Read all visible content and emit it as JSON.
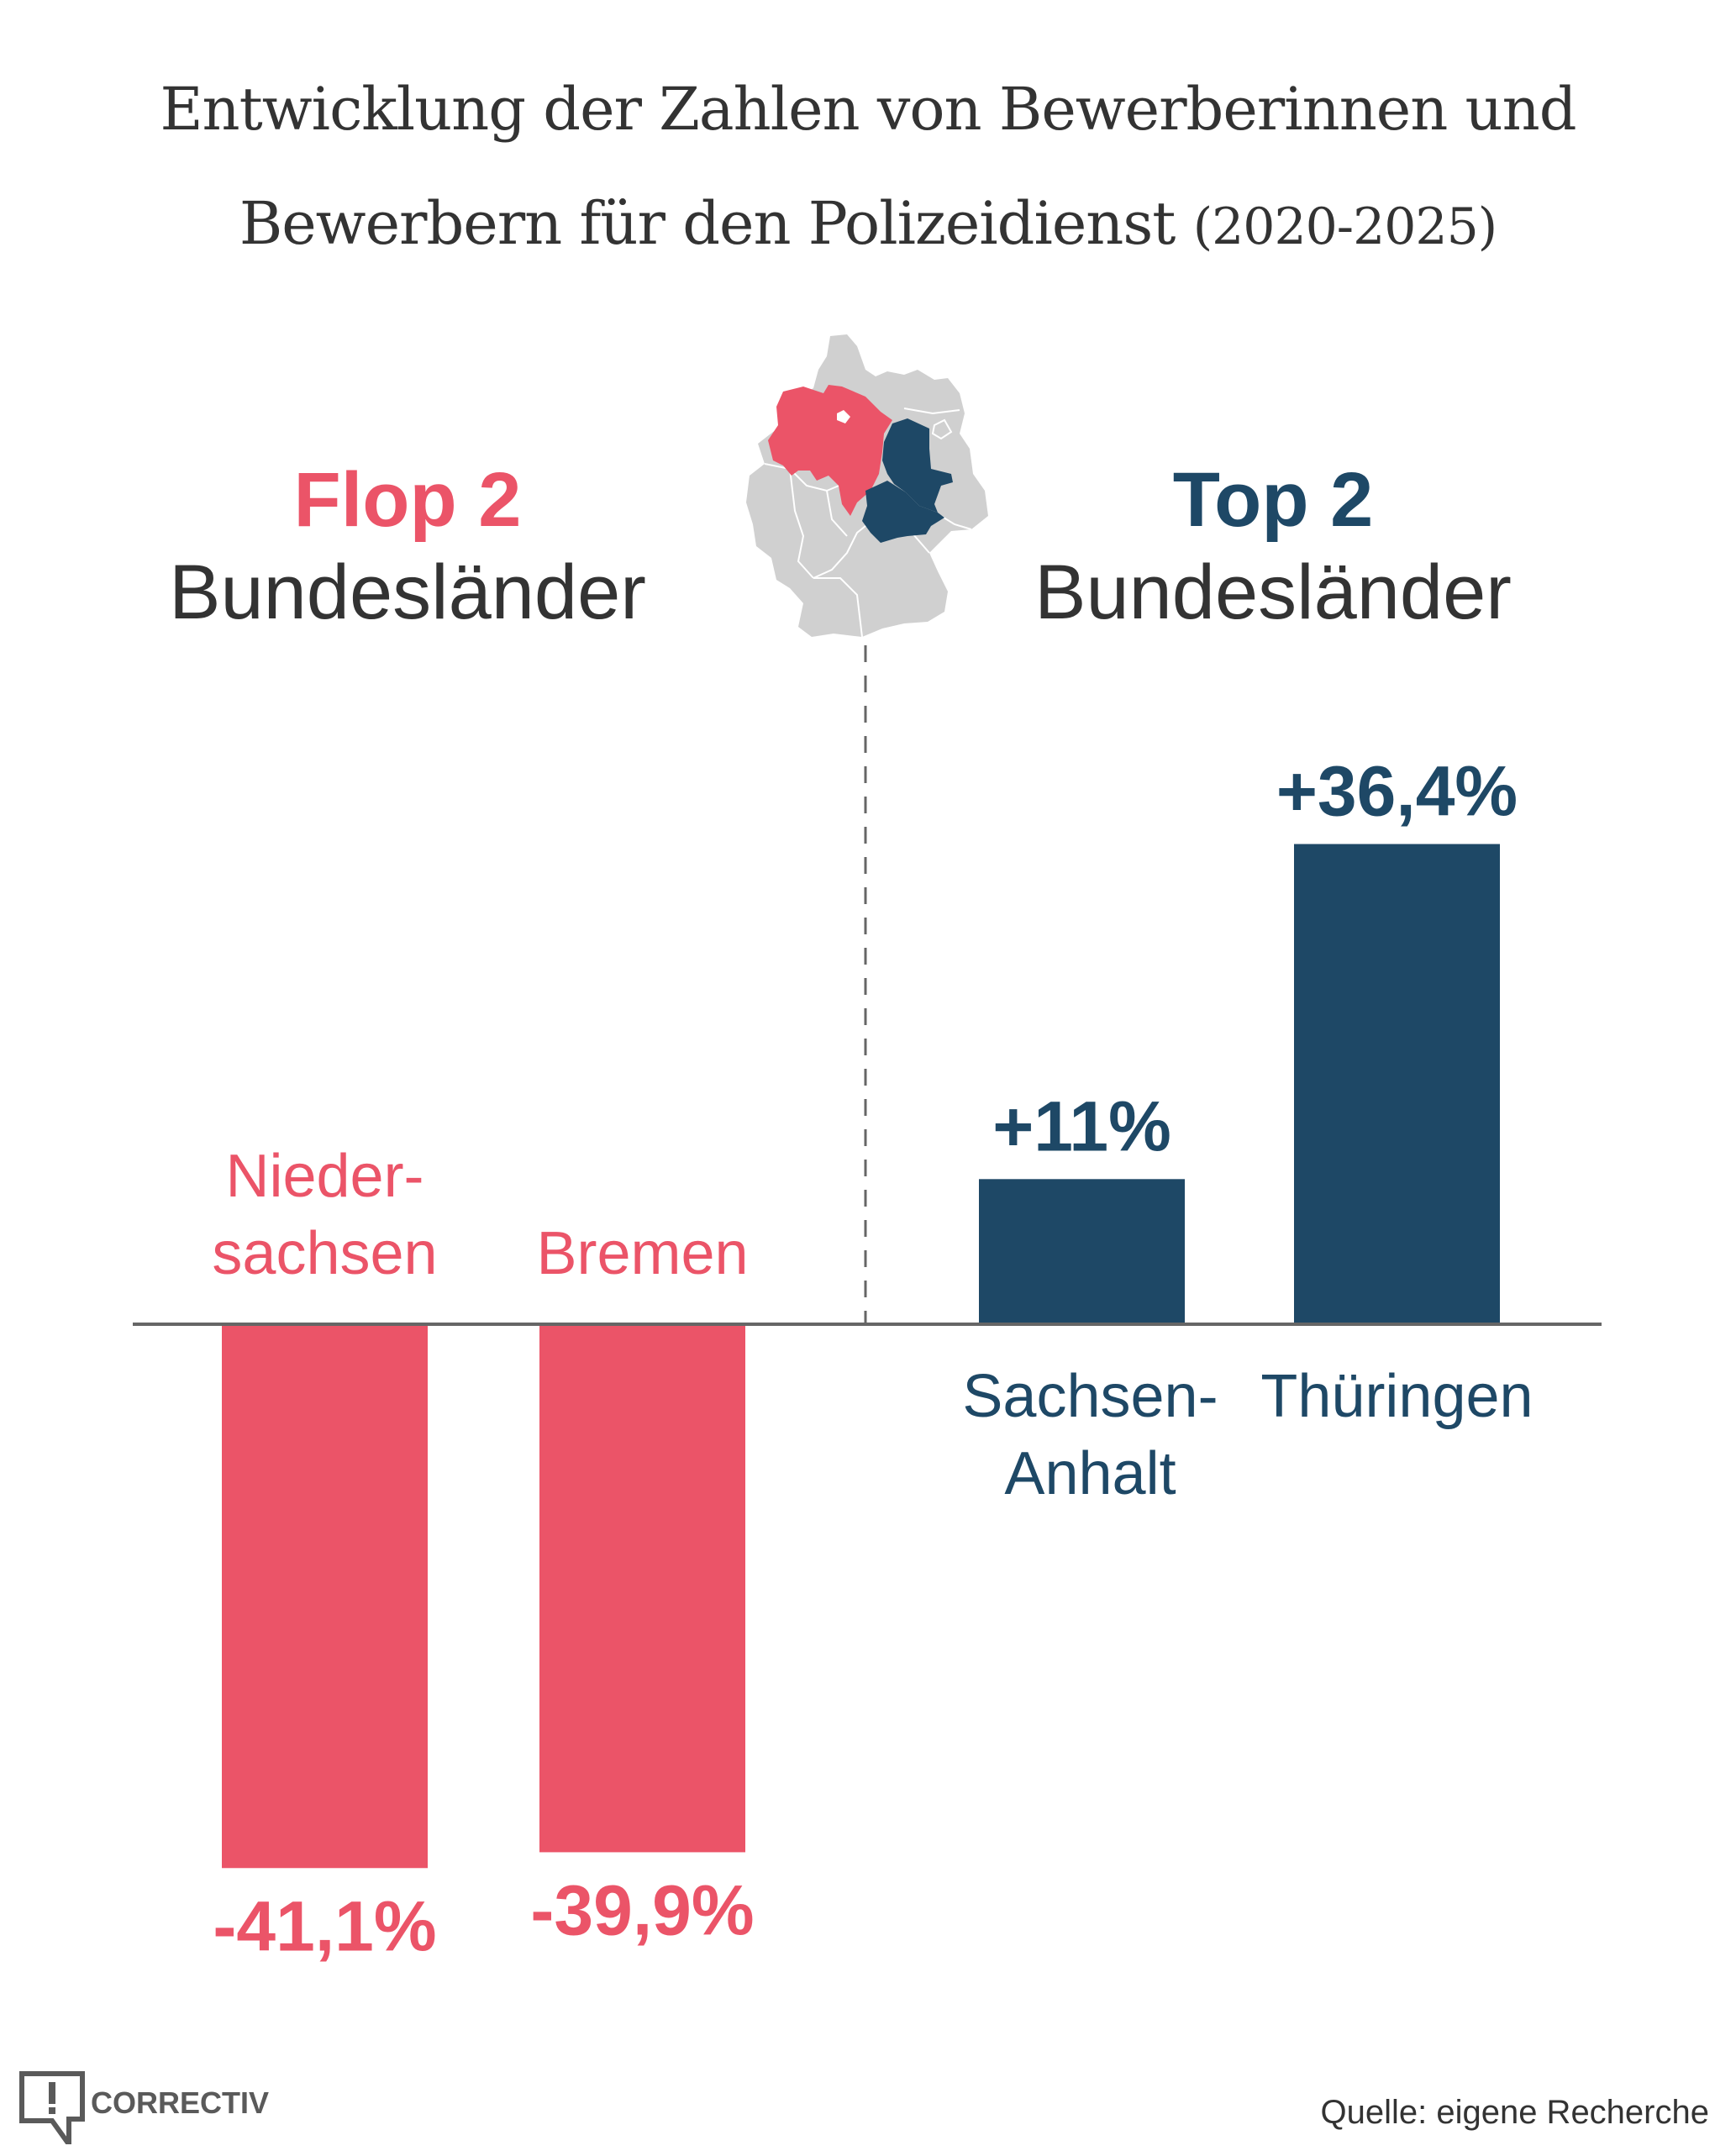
{
  "title": {
    "line1": "Entwicklung der Zahlen von Bewerberinnen und",
    "line2": "Bewerbern für den Polizeidienst",
    "years": "(2020-2025)"
  },
  "groups": {
    "flop": {
      "rank": "Flop 2",
      "sub": "Bundesländer",
      "color": "#eb5468"
    },
    "top": {
      "rank": "Top 2",
      "sub": "Bundesländer",
      "color": "#1e4866"
    }
  },
  "map": {
    "highlighted_flop": [
      "Niedersachsen",
      "Bremen"
    ],
    "highlighted_top": [
      "Sachsen-Anhalt",
      "Thüringen"
    ],
    "base_color": "#d0d0d0"
  },
  "chart_data": {
    "type": "bar",
    "title": "Entwicklung der Zahlen von Bewerberinnen und Bewerbern für den Polizeidienst (2020-2025)",
    "xlabel": "",
    "ylabel": "",
    "unit": "%",
    "grid": false,
    "categories": [
      "Niedersachsen",
      "Bremen",
      "Sachsen-Anhalt",
      "Thüringen"
    ],
    "category_label_lines": [
      [
        "Nieder-",
        "sachsen"
      ],
      [
        "Bremen"
      ],
      [
        "Sachsen-",
        "Anhalt"
      ],
      [
        "Thüringen"
      ]
    ],
    "values": [
      -41.1,
      -39.9,
      11,
      36.4
    ],
    "value_labels": [
      "-41,1%",
      "-39,9%",
      "+11%",
      "+36,4%"
    ],
    "groups": [
      "flop",
      "flop",
      "top",
      "top"
    ],
    "ylim": [
      -45,
      40
    ]
  },
  "footer": {
    "logo_text": "CORRECTIV",
    "source": "Quelle: eigene Recherche"
  }
}
